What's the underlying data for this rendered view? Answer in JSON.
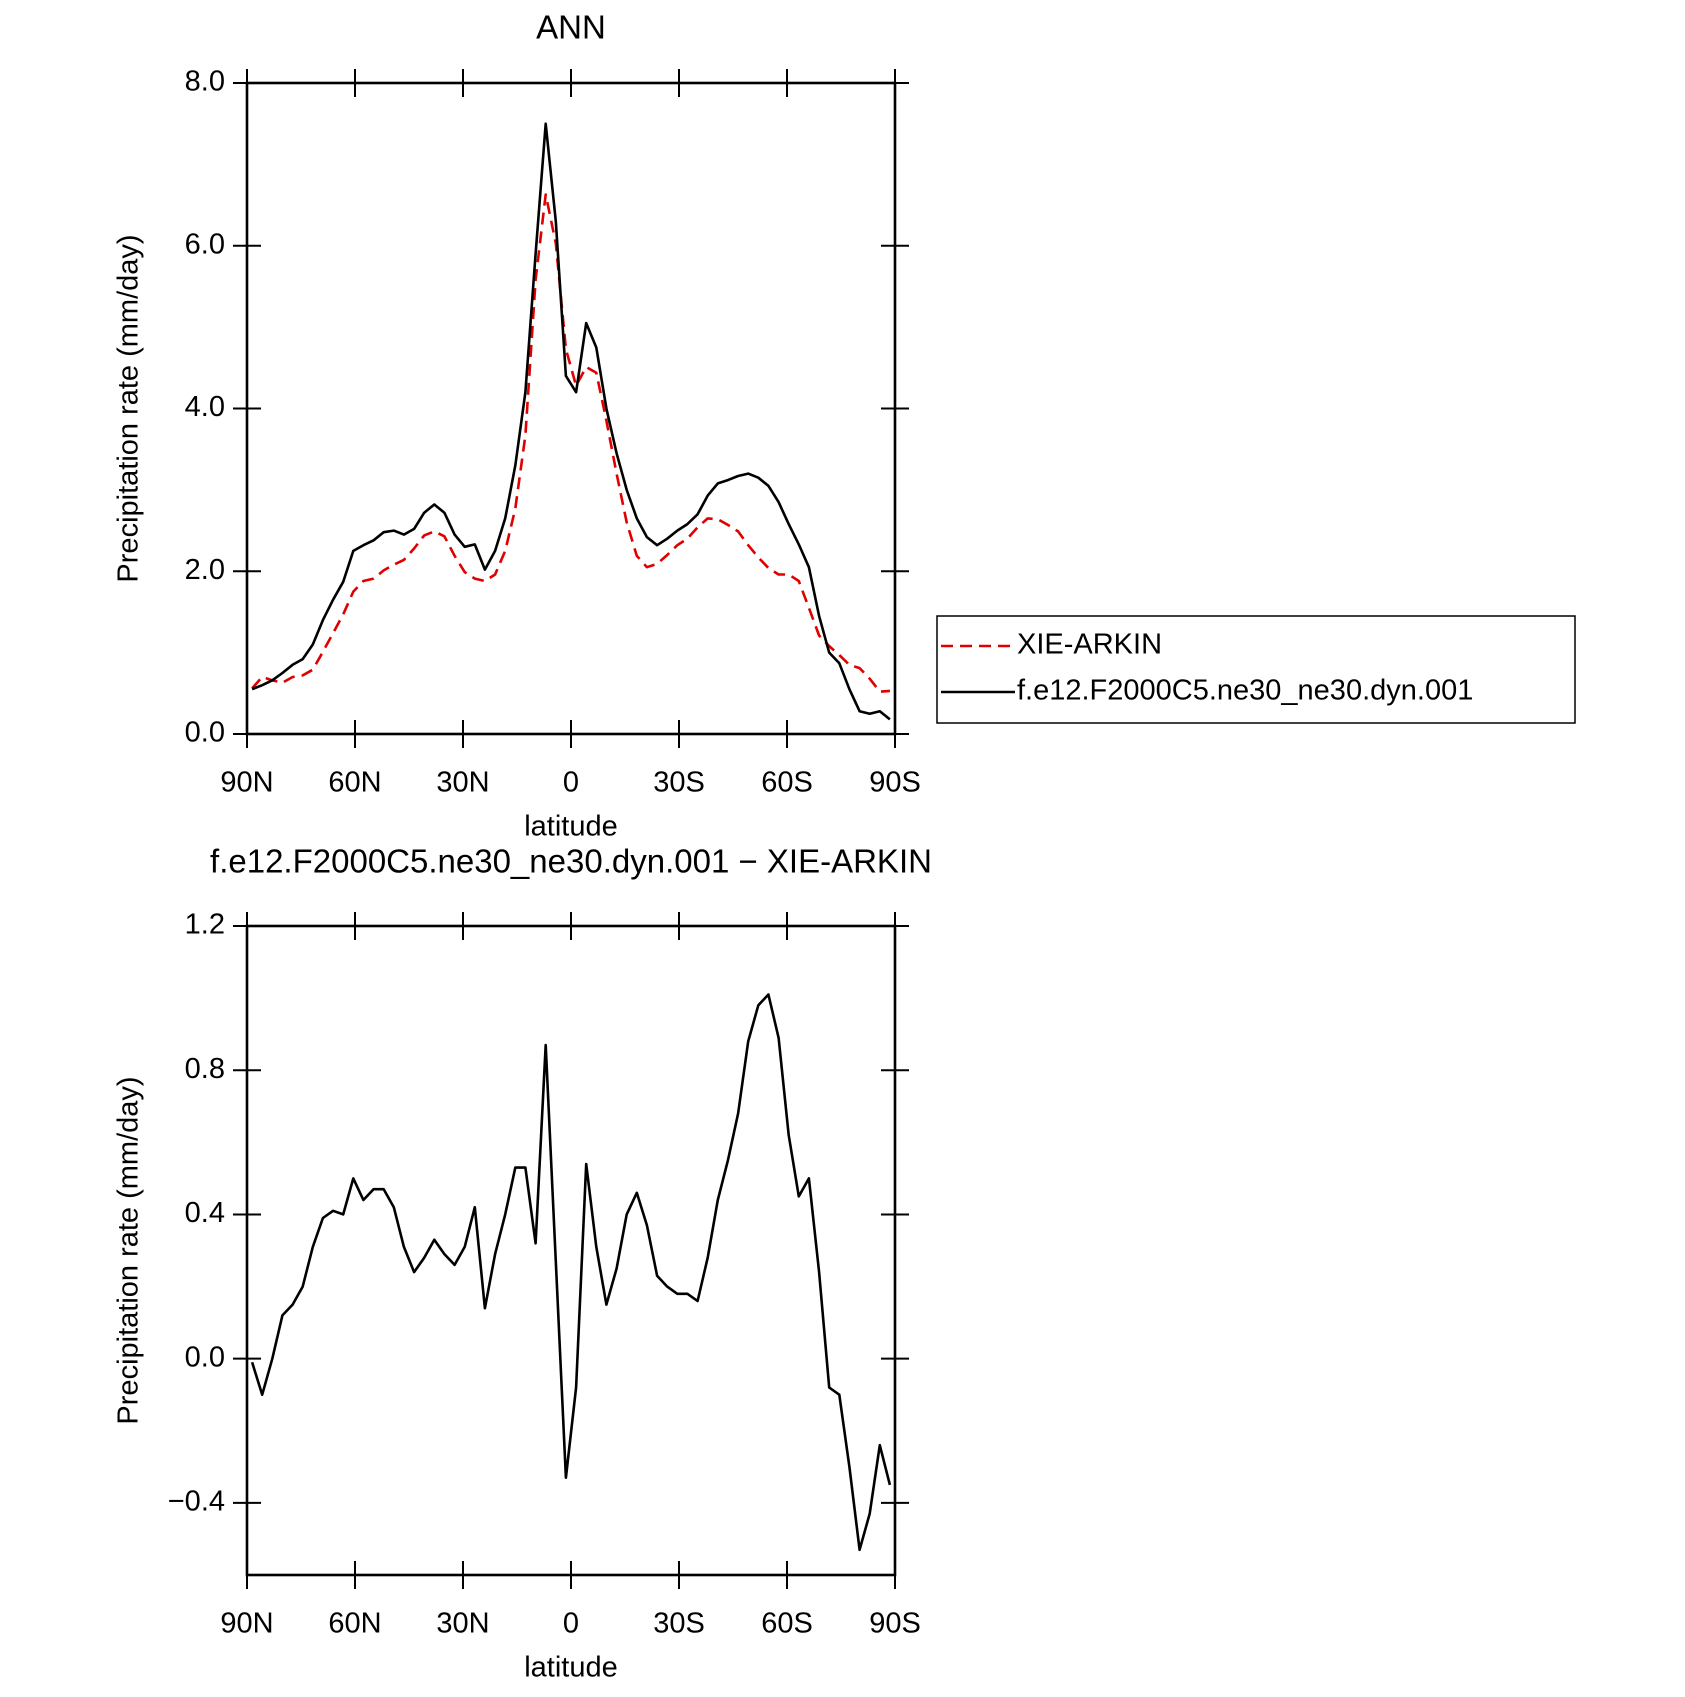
{
  "chart_data": [
    {
      "type": "line",
      "title": "ANN",
      "xlabel": "latitude",
      "ylabel": "Precipitation rate (mm/day)",
      "x": [
        88.59,
        85.78,
        82.97,
        80.16,
        77.34,
        74.53,
        71.72,
        68.91,
        66.09,
        63.28,
        60.47,
        57.66,
        54.84,
        52.03,
        49.22,
        46.41,
        43.59,
        40.78,
        37.97,
        35.16,
        32.34,
        29.53,
        26.72,
        23.91,
        21.09,
        18.28,
        15.47,
        12.66,
        9.84,
        7.03,
        4.22,
        1.41,
        -1.41,
        -4.22,
        -7.03,
        -9.84,
        -12.66,
        -15.47,
        -18.28,
        -21.09,
        -23.91,
        -26.72,
        -29.53,
        -32.34,
        -35.16,
        -37.97,
        -40.78,
        -43.59,
        -46.41,
        -49.22,
        -52.03,
        -54.84,
        -57.66,
        -60.47,
        -63.28,
        -66.09,
        -68.91,
        -71.72,
        -74.53,
        -77.34,
        -80.16,
        -82.97,
        -85.78,
        -88.59
      ],
      "series": [
        {
          "name": "XIE-ARKIN",
          "color": "#e00000",
          "dashed": true,
          "values": [
            0.56,
            0.7,
            0.66,
            0.63,
            0.7,
            0.72,
            0.79,
            1.01,
            1.24,
            1.47,
            1.75,
            1.88,
            1.91,
            2.01,
            2.08,
            2.14,
            2.28,
            2.44,
            2.49,
            2.43,
            2.19,
            1.99,
            1.91,
            1.88,
            1.96,
            2.25,
            2.77,
            3.67,
            5.58,
            6.63,
            6.03,
            4.73,
            4.28,
            4.51,
            4.44,
            3.85,
            3.2,
            2.6,
            2.19,
            2.05,
            2.09,
            2.2,
            2.32,
            2.4,
            2.54,
            2.65,
            2.64,
            2.57,
            2.49,
            2.32,
            2.17,
            2.04,
            1.96,
            1.96,
            1.88,
            1.55,
            1.21,
            1.08,
            0.97,
            0.85,
            0.81,
            0.68,
            0.52,
            0.53
          ]
        },
        {
          "name": "f.e12.F2000C5.ne30_ne30.dyn.001",
          "color": "#000000",
          "dashed": false,
          "values": [
            0.55,
            0.6,
            0.66,
            0.75,
            0.85,
            0.92,
            1.1,
            1.4,
            1.65,
            1.87,
            2.25,
            2.32,
            2.38,
            2.48,
            2.5,
            2.45,
            2.52,
            2.72,
            2.82,
            2.72,
            2.45,
            2.3,
            2.33,
            2.02,
            2.25,
            2.65,
            3.3,
            4.2,
            5.9,
            7.5,
            6.3,
            4.4,
            4.2,
            5.05,
            4.75,
            4.0,
            3.45,
            3.0,
            2.65,
            2.42,
            2.32,
            2.4,
            2.5,
            2.58,
            2.7,
            2.93,
            3.08,
            3.12,
            3.17,
            3.2,
            3.15,
            3.05,
            2.85,
            2.58,
            2.33,
            2.05,
            1.45,
            1.0,
            0.87,
            0.55,
            0.28,
            0.25,
            0.28,
            0.18
          ]
        }
      ],
      "xlim": [
        90,
        -90
      ],
      "xticks": [
        {
          "value": 90,
          "label": "90N"
        },
        {
          "value": 60,
          "label": "60N"
        },
        {
          "value": 30,
          "label": "30N"
        },
        0,
        {
          "value": -30,
          "label": "30S"
        },
        {
          "value": -60,
          "label": "60S"
        },
        {
          "value": -90,
          "label": "90S"
        }
      ],
      "ylim": [
        0,
        8
      ],
      "yticks": [
        {
          "value": 0,
          "label": "0.0"
        },
        {
          "value": 2,
          "label": "2.0"
        },
        {
          "value": 4,
          "label": "4.0"
        },
        {
          "value": 6,
          "label": "6.0"
        },
        {
          "value": 8,
          "label": "8.0"
        }
      ],
      "legend": "outside-right"
    },
    {
      "type": "line",
      "title": "f.e12.F2000C5.ne30_ne30.dyn.001 − XIE-ARKIN",
      "xlabel": "latitude",
      "ylabel": "Precipitation rate (mm/day)",
      "x": [
        88.59,
        85.78,
        82.97,
        80.16,
        77.34,
        74.53,
        71.72,
        68.91,
        66.09,
        63.28,
        60.47,
        57.66,
        54.84,
        52.03,
        49.22,
        46.41,
        43.59,
        40.78,
        37.97,
        35.16,
        32.34,
        29.53,
        26.72,
        23.91,
        21.09,
        18.28,
        15.47,
        12.66,
        9.84,
        7.03,
        4.22,
        1.41,
        -1.41,
        -4.22,
        -7.03,
        -9.84,
        -12.66,
        -15.47,
        -18.28,
        -21.09,
        -23.91,
        -26.72,
        -29.53,
        -32.34,
        -35.16,
        -37.97,
        -40.78,
        -43.59,
        -46.41,
        -49.22,
        -52.03,
        -54.84,
        -57.66,
        -60.47,
        -63.28,
        -66.09,
        -68.91,
        -71.72,
        -74.53,
        -77.34,
        -80.16,
        -82.97,
        -85.78,
        -88.59
      ],
      "color": "#000000",
      "values": [
        -0.01,
        -0.1,
        0.0,
        0.12,
        0.15,
        0.2,
        0.31,
        0.39,
        0.41,
        0.4,
        0.5,
        0.44,
        0.47,
        0.47,
        0.42,
        0.31,
        0.24,
        0.28,
        0.33,
        0.29,
        0.26,
        0.31,
        0.42,
        0.14,
        0.29,
        0.4,
        0.53,
        0.53,
        0.32,
        0.87,
        0.27,
        -0.33,
        -0.08,
        0.54,
        0.31,
        0.15,
        0.25,
        0.4,
        0.46,
        0.37,
        0.23,
        0.2,
        0.18,
        0.18,
        0.16,
        0.28,
        0.44,
        0.55,
        0.68,
        0.88,
        0.98,
        1.01,
        0.89,
        0.62,
        0.45,
        0.5,
        0.24,
        -0.08,
        -0.1,
        -0.3,
        -0.53,
        -0.43,
        -0.24,
        -0.35
      ],
      "xlim": [
        90,
        -90
      ],
      "xticks": [
        {
          "value": 90,
          "label": "90N"
        },
        {
          "value": 60,
          "label": "60N"
        },
        {
          "value": 30,
          "label": "30N"
        },
        0,
        {
          "value": -30,
          "label": "30S"
        },
        {
          "value": -60,
          "label": "60S"
        },
        {
          "value": -90,
          "label": "90S"
        }
      ],
      "ylim": [
        -0.6,
        1.2
      ],
      "yticks": [
        {
          "value": -0.4,
          "label": "−0.4"
        },
        {
          "value": 0,
          "label": "0.0"
        },
        0.4,
        0.8,
        1.2
      ]
    }
  ]
}
